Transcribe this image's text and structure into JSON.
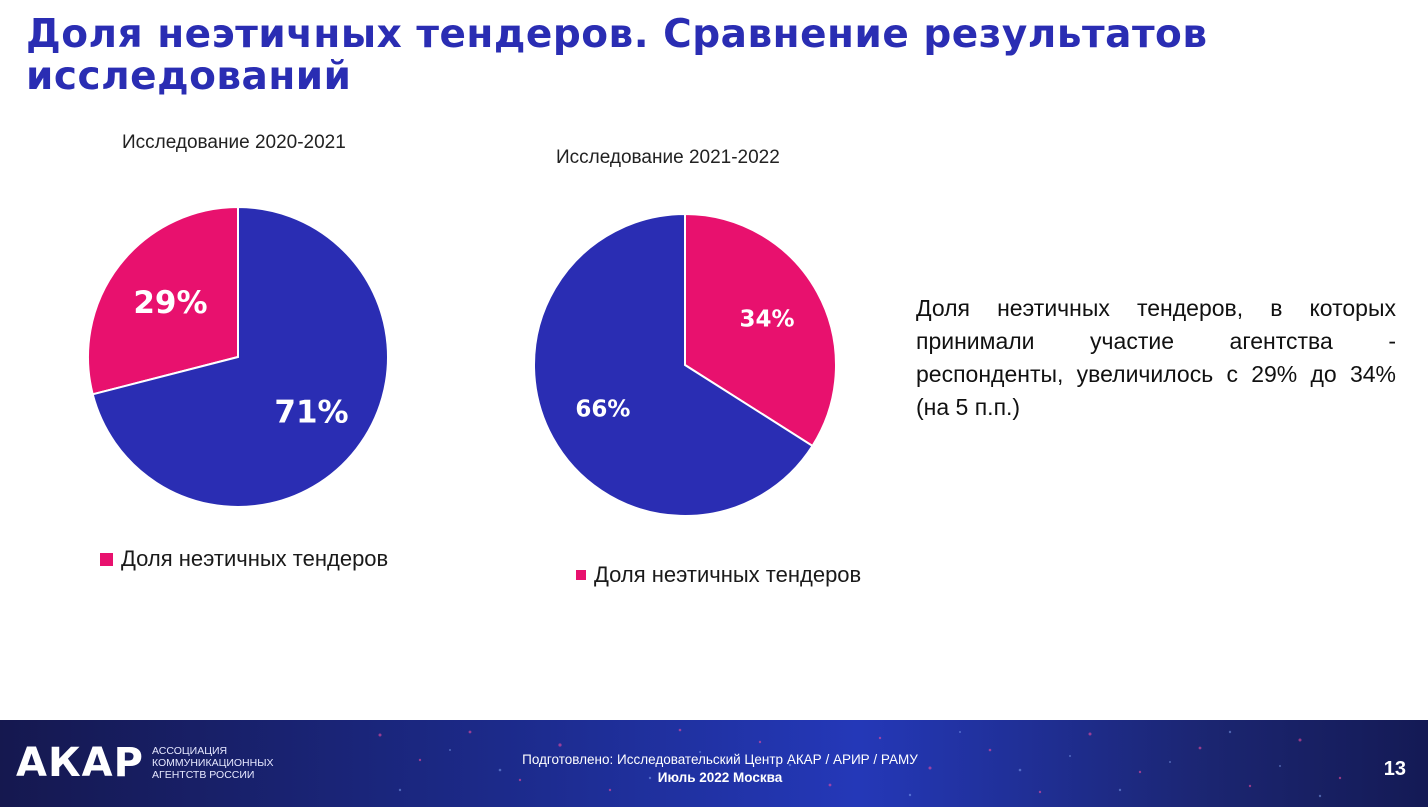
{
  "slide": {
    "title": "Доля неэтичных тендеров. Сравнение результатов исследований",
    "note": "Доля неэтичных тендеров, в которых принимали участие агентства - респонденты, увеличилось с 29% до 34% (на 5 п.п.)"
  },
  "colors": {
    "accent": "#2a2db3",
    "pink": "#e8116e",
    "blue": "#2a2db3"
  },
  "chart_data": [
    {
      "type": "pie",
      "title": "Исследование 2020-2021",
      "series": [
        {
          "name": "Доля неэтичных тендеров",
          "value": 29,
          "label": "29%",
          "color": "#e8116e"
        },
        {
          "value": 71,
          "label": "71%",
          "color": "#2a2db3"
        }
      ],
      "legend": {
        "label": "Доля неэтичных тендеров",
        "position": "bottom"
      }
    },
    {
      "type": "pie",
      "title": "Исследование 2021-2022",
      "series": [
        {
          "name": "Доля неэтичных тендеров",
          "value": 34,
          "label": "34%",
          "color": "#e8116e"
        },
        {
          "value": 66,
          "label": "66%",
          "color": "#2a2db3"
        }
      ],
      "legend": {
        "label": "Доля неэтичных тендеров",
        "position": "bottom"
      }
    }
  ],
  "footer": {
    "logo": "АКАР",
    "logo_sub": [
      "Ассоциация",
      "коммуникационных",
      "агентств России"
    ],
    "credit": "Подготовлено: Исследовательский Центр АКАР / АРИР / РАМУ",
    "date": "Июль 2022 Москва",
    "page": "13"
  }
}
